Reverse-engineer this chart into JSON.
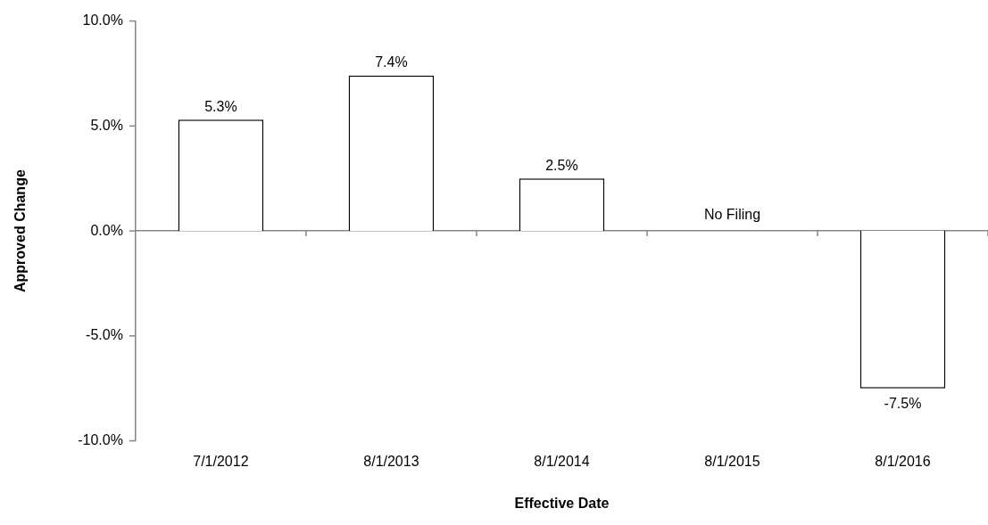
{
  "chart_data": {
    "type": "bar",
    "xlabel": "Effective Date",
    "ylabel": "Approved Change",
    "categories": [
      "7/1/2012",
      "8/1/2013",
      "8/1/2014",
      "8/1/2015",
      "8/1/2016"
    ],
    "values": [
      5.3,
      7.4,
      2.5,
      null,
      -7.5
    ],
    "value_labels": [
      "5.3%",
      "7.4%",
      "2.5%",
      "No Filing",
      "-7.5%"
    ],
    "color": "#ffffff",
    "ylim": [
      -10,
      10
    ],
    "yticks": [
      {
        "value": -10,
        "label": "-10.0%"
      },
      {
        "value": -5,
        "label": "-5.0%"
      },
      {
        "value": 0,
        "label": "0.0%"
      },
      {
        "value": 5,
        "label": "5.0%"
      },
      {
        "value": 10,
        "label": "10.0%"
      }
    ],
    "legend": false
  }
}
